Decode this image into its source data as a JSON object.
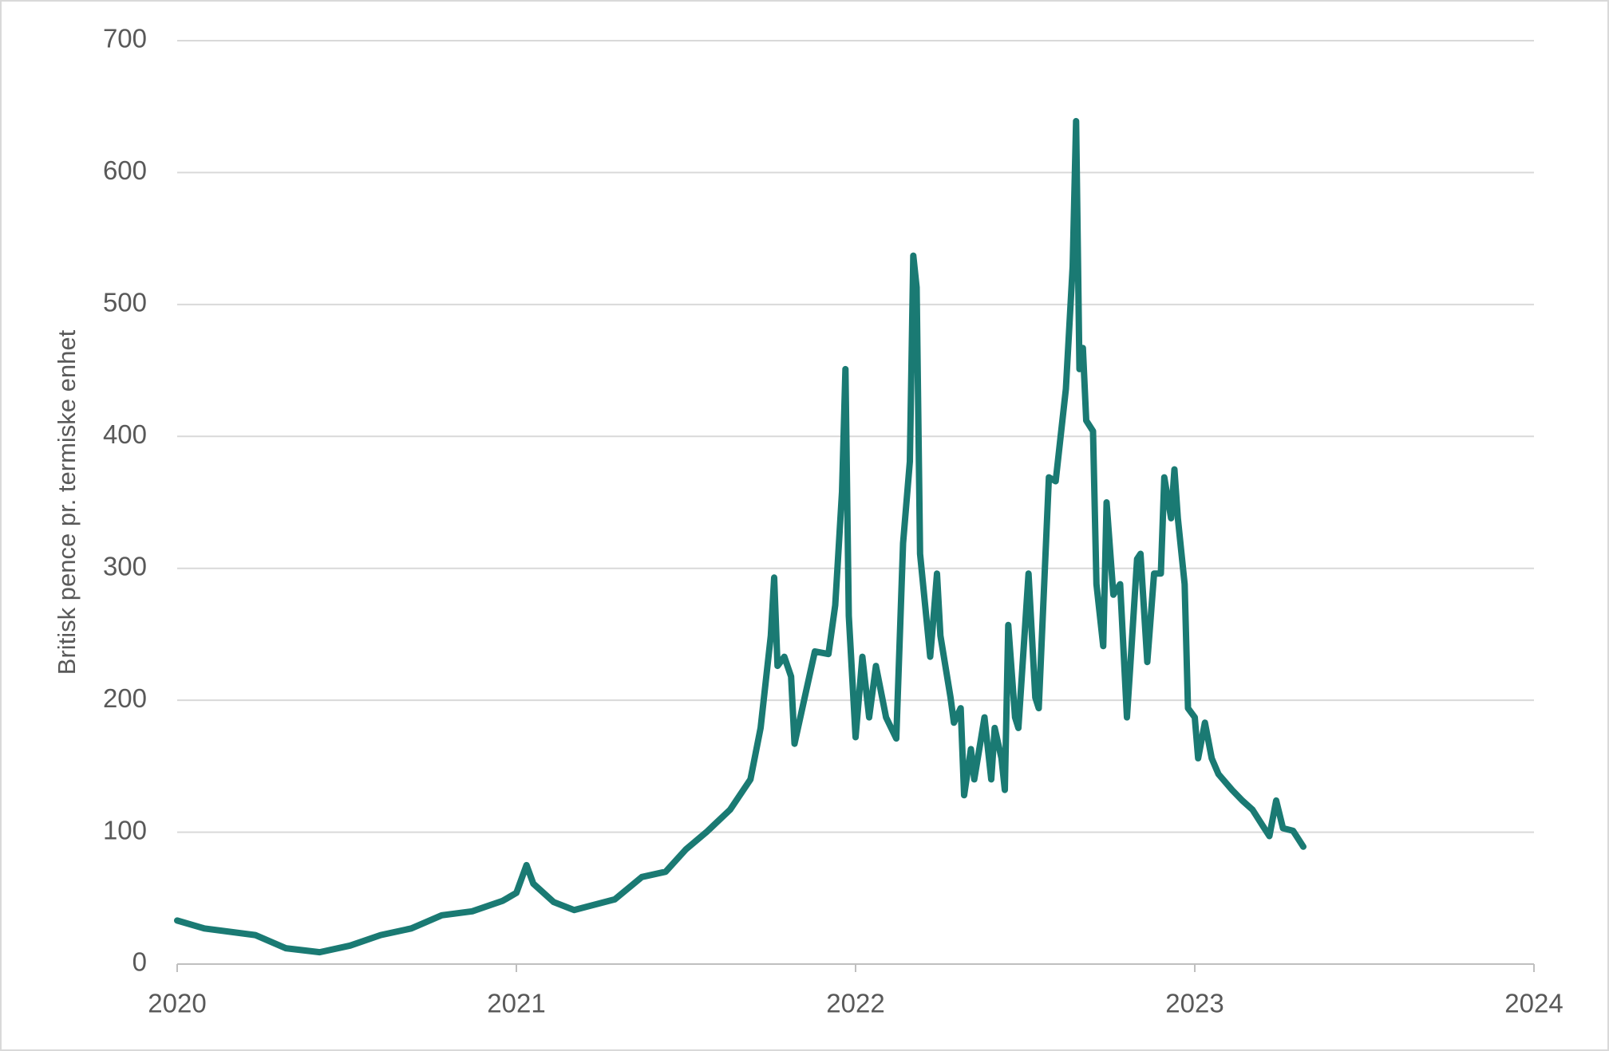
{
  "chart_data": {
    "type": "line",
    "y_label": "Britisk pence pr. termiske enhet",
    "series": [
      {
        "color": "#1a7a73",
        "x": [
          2020.0,
          2020.08,
          2020.23,
          2020.32,
          2020.42,
          2020.51,
          2020.6,
          2020.69,
          2020.78,
          2020.87,
          2020.96,
          2021.0,
          2021.03,
          2021.05,
          2021.11,
          2021.17,
          2021.29,
          2021.37,
          2021.44,
          2021.5,
          2021.56,
          2021.63,
          2021.69,
          2021.72,
          2021.75,
          2021.76,
          2021.77,
          2021.79,
          2021.81,
          2021.82,
          2021.85,
          2021.88,
          2021.92,
          2021.94,
          2021.96,
          2021.97,
          2021.98,
          2022.0,
          2022.02,
          2022.04,
          2022.06,
          2022.09,
          2022.12,
          2022.14,
          2022.16,
          2022.17,
          2022.18,
          2022.19,
          2022.22,
          2022.23,
          2022.24,
          2022.25,
          2022.28,
          2022.29,
          2022.31,
          2022.32,
          2022.34,
          2022.35,
          2022.37,
          2022.38,
          2022.4,
          2022.41,
          2022.43,
          2022.44,
          2022.45,
          2022.47,
          2022.48,
          2022.5,
          2022.51,
          2022.53,
          2022.54,
          2022.56,
          2022.57,
          2022.59,
          2022.62,
          2022.64,
          2022.65,
          2022.66,
          2022.67,
          2022.68,
          2022.7,
          2022.71,
          2022.73,
          2022.74,
          2022.76,
          2022.78,
          2022.8,
          2022.81,
          2022.83,
          2022.84,
          2022.86,
          2022.88,
          2022.9,
          2022.91,
          2022.93,
          2022.94,
          2022.95,
          2022.97,
          2022.98,
          2023.0,
          2023.01,
          2023.03,
          2023.05,
          2023.07,
          2023.11,
          2023.14,
          2023.17,
          2023.2,
          2023.22,
          2023.24,
          2023.26,
          2023.29,
          2023.32
        ],
        "values": [
          33,
          27,
          22,
          12,
          9,
          14,
          22,
          27,
          37,
          40,
          48,
          54,
          75,
          61,
          47,
          41,
          49,
          66,
          70,
          87,
          100,
          117,
          140,
          179,
          249,
          293,
          226,
          233,
          218,
          167,
          202,
          237,
          235,
          272,
          358,
          451,
          264,
          172,
          233,
          187,
          226,
          187,
          171,
          319,
          381,
          537,
          513,
          311,
          233,
          264,
          296,
          249,
          202,
          183,
          194,
          128,
          163,
          140,
          171,
          187,
          140,
          179,
          156,
          132,
          257,
          187,
          179,
          257,
          296,
          202,
          194,
          311,
          369,
          366,
          436,
          529,
          639,
          451,
          467,
          412,
          404,
          288,
          241,
          350,
          280,
          288,
          187,
          226,
          307,
          311,
          229,
          296,
          296,
          369,
          338,
          375,
          338,
          288,
          194,
          187,
          156,
          183,
          156,
          144,
          132,
          124,
          117,
          105,
          97,
          124,
          103,
          101,
          89
        ]
      }
    ],
    "xlim": [
      2020,
      2024
    ],
    "xticks": [
      2020,
      2021,
      2022,
      2023,
      2024
    ],
    "ylim": [
      0,
      700
    ],
    "yticks": [
      0,
      100,
      200,
      300,
      400,
      500,
      600,
      700
    ],
    "grid": true
  }
}
